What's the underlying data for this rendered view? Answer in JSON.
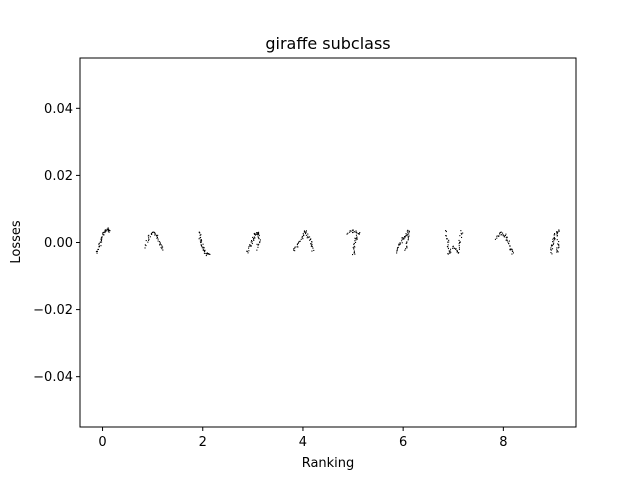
{
  "chart_data": {
    "type": "scatter",
    "title": "giraffe subclass",
    "xlabel": "Ranking",
    "ylabel": "Losses",
    "xlim": [
      -0.45,
      9.45
    ],
    "ylim": [
      -0.055,
      0.055
    ],
    "x_ticks": [
      0,
      2,
      4,
      6,
      8
    ],
    "x_tick_labels": [
      "0",
      "2",
      "4",
      "6",
      "8"
    ],
    "y_ticks": [
      -0.04,
      -0.02,
      0.0,
      0.02,
      0.04
    ],
    "y_tick_labels": [
      "−0.04",
      "−0.02",
      "0.00",
      "0.02",
      "0.04"
    ],
    "grid": false,
    "marker": "giraffe-image-thumbnail",
    "x": [
      0,
      1,
      2,
      3,
      4,
      5,
      6,
      7,
      8,
      9
    ],
    "y": [
      0,
      0,
      0,
      0,
      0,
      0,
      0,
      0,
      0,
      0
    ]
  }
}
